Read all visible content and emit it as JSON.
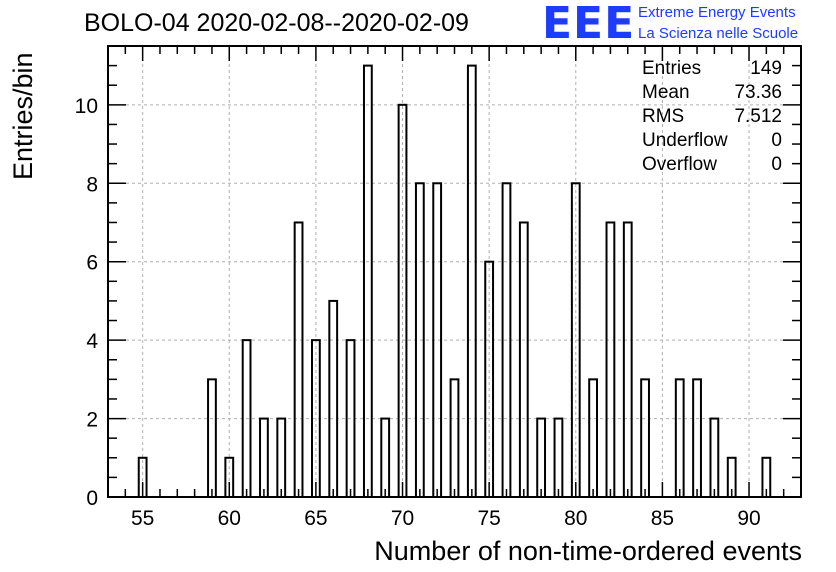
{
  "title": "BOLO-04 2020-02-08--2020-02-09",
  "logo": {
    "mark": "EEE",
    "line1": "Extreme Energy Events",
    "line2": "La Scienza nelle Scuole",
    "color": "#1e3cff"
  },
  "stats": {
    "entries_label": "Entries",
    "entries_value": "149",
    "mean_label": "Mean",
    "mean_value": "73.36",
    "rms_label": "RMS",
    "rms_value": "7.512",
    "underflow_label": "Underflow",
    "underflow_value": "0",
    "overflow_label": "Overflow",
    "overflow_value": "0"
  },
  "chart_data": {
    "type": "bar",
    "title": "BOLO-04 2020-02-08--2020-02-09",
    "xlabel": "Number of non-time-ordered events",
    "ylabel": "Entries/bin",
    "xlim": [
      53,
      93
    ],
    "ylim": [
      0,
      11.5
    ],
    "x_ticks": [
      55,
      60,
      65,
      70,
      75,
      80,
      85,
      90
    ],
    "y_ticks": [
      0,
      2,
      4,
      6,
      8,
      10
    ],
    "grid": true,
    "bin_width": 1,
    "bar_width_fraction": 0.45,
    "x": [
      55,
      59,
      60,
      61,
      62,
      63,
      64,
      65,
      66,
      67,
      68,
      69,
      70,
      71,
      72,
      74,
      75,
      76,
      77,
      78,
      79,
      80,
      82,
      83,
      84,
      86,
      87,
      88,
      89,
      91,
      73
    ],
    "values": [
      1,
      3,
      1,
      4,
      2,
      2,
      7,
      4,
      5,
      4,
      11,
      2,
      10,
      8,
      8,
      11,
      6,
      8,
      7,
      2,
      2,
      8,
      7,
      7,
      3,
      3,
      3,
      2,
      1,
      1,
      3
    ],
    "extra_x": [
      81
    ],
    "extra_values": [
      3
    ]
  }
}
